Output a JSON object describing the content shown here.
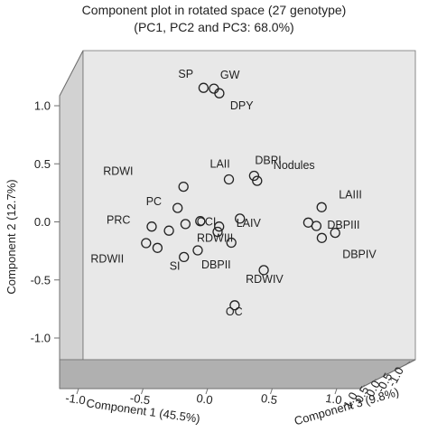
{
  "chart_data": {
    "type": "scatter",
    "projection": "3d",
    "title": "Component plot in rotated space (27 genotype)",
    "subtitle": "(PC1, PC2 and PC3: 68.0%)",
    "axes": {
      "x": {
        "label": "Component 1 (45.5%)",
        "range": [
          -1.0,
          1.0
        ],
        "ticks": [
          "-1.0",
          "-0.5",
          "0.0",
          "0.5",
          "1.0"
        ]
      },
      "y": {
        "label": "Component 2 (12.7%)",
        "range": [
          -1.0,
          1.0
        ],
        "ticks": [
          "-1.0",
          "-0.5",
          "0.0",
          "0.5",
          "1.0"
        ]
      },
      "z": {
        "label": "Component 3 (9.8%)",
        "range": [
          -1.0,
          1.0
        ],
        "ticks": [
          "1.0",
          "0.5",
          "0.0",
          "-0.5",
          "-1.0"
        ]
      }
    },
    "grid": false,
    "legend": "none",
    "colors": {
      "back_wall": "#e8e8e8",
      "side_wall": "#d2d2d2",
      "floor": "#b0b0b0",
      "edge": "#6f6f6f",
      "text": "#222222"
    },
    "points": [
      {
        "label": "SP",
        "x": -0.18,
        "y": 0.98,
        "z": 0.25
      },
      {
        "label": "GW",
        "x": -0.12,
        "y": 0.97,
        "z": 0.2
      },
      {
        "label": "DPY",
        "x": -0.08,
        "y": 0.94,
        "z": 0.22
      },
      {
        "label": "DBPI",
        "x": 0.12,
        "y": 0.36,
        "z": 0.05
      },
      {
        "label": "LAII",
        "x": -0.02,
        "y": 0.35,
        "z": 0.2
      },
      {
        "label": "Nodules",
        "x": 0.15,
        "y": 0.33,
        "z": 0.1
      },
      {
        "label": "RDWI",
        "x": -0.36,
        "y": 0.28,
        "z": 0.0
      },
      {
        "label": "LAIII",
        "x": 0.58,
        "y": 0.15,
        "z": 0.1
      },
      {
        "label": "PC",
        "x": -0.39,
        "y": 0.14,
        "z": 0.05
      },
      {
        "label": "LAIV",
        "x": 0.05,
        "y": 0.08,
        "z": 0.18
      },
      {
        "label": "CCI",
        "x": -0.22,
        "y": 0.06,
        "z": 0.15
      },
      {
        "label": "PRC",
        "x": -0.55,
        "y": 0.02,
        "z": 0.12
      },
      {
        "label": "DBPIII",
        "x": 0.56,
        "y": 0.03,
        "z": 0.18
      },
      {
        "label": "RDWIII",
        "x": -0.08,
        "y": 0.0,
        "z": 0.28
      },
      {
        "label": "DBPIV",
        "x": 0.68,
        "y": -0.02,
        "z": 0.15
      },
      {
        "label": "RDWII",
        "x": -0.5,
        "y": -0.12,
        "z": 0.18
      },
      {
        "label": "DBPII",
        "x": -0.2,
        "y": -0.12,
        "z": 0.35
      },
      {
        "label": "SI",
        "x": -0.32,
        "y": -0.18,
        "z": 0.2
      },
      {
        "label": "RDWIV",
        "x": 0.25,
        "y": -0.25,
        "z": 0.4
      },
      {
        "label": "OC",
        "x": 0.0,
        "y": -0.52,
        "z": 0.1
      },
      {
        "label": "",
        "x": -0.6,
        "y": -0.1,
        "z": 0.05
      },
      {
        "label": "",
        "x": -0.42,
        "y": 0.0,
        "z": 0.2
      },
      {
        "label": "",
        "x": -0.3,
        "y": 0.05,
        "z": 0.25
      },
      {
        "label": "",
        "x": 0.0,
        "y": -0.08,
        "z": 0.22
      },
      {
        "label": "",
        "x": 0.5,
        "y": 0.05,
        "z": 0.15
      },
      {
        "label": "",
        "x": 0.6,
        "y": -0.05,
        "z": 0.2
      },
      {
        "label": "",
        "x": -0.1,
        "y": 0.02,
        "z": 0.12
      }
    ]
  }
}
